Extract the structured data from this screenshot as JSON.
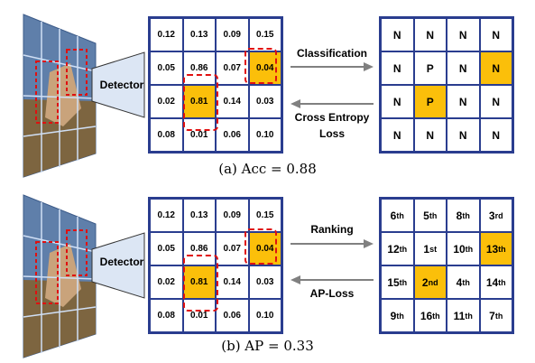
{
  "panels": [
    {
      "detector_label": "Detector",
      "scores": [
        "0.12",
        "0.13",
        "0.09",
        "0.15",
        "0.05",
        "0.86",
        "0.07",
        "0.04",
        "0.02",
        "0.81",
        "0.14",
        "0.03",
        "0.08",
        "0.01",
        "0.06",
        "0.10"
      ],
      "highlighted": [
        7,
        9
      ],
      "top_arrow_label": "Classification",
      "bottom_arrow_label": "Cross Entropy\nLoss",
      "right_labels": [
        "N",
        "N",
        "N",
        "N",
        "N",
        "P",
        "N",
        "N",
        "N",
        "P",
        "N",
        "N",
        "N",
        "N",
        "N",
        "N"
      ],
      "right_highlighted": [
        7,
        9
      ],
      "caption": "(a) Acc = 0.88"
    },
    {
      "detector_label": "Detector",
      "scores": [
        "0.12",
        "0.13",
        "0.09",
        "0.15",
        "0.05",
        "0.86",
        "0.07",
        "0.04",
        "0.02",
        "0.81",
        "0.14",
        "0.03",
        "0.08",
        "0.01",
        "0.06",
        "0.10"
      ],
      "highlighted": [
        7,
        9
      ],
      "top_arrow_label": "Ranking",
      "bottom_arrow_label": "AP-Loss",
      "ranks": [
        {
          "n": "6",
          "s": "th"
        },
        {
          "n": "5",
          "s": "th"
        },
        {
          "n": "8",
          "s": "th"
        },
        {
          "n": "3",
          "s": "rd"
        },
        {
          "n": "12",
          "s": "th"
        },
        {
          "n": "1",
          "s": "st"
        },
        {
          "n": "10",
          "s": "th"
        },
        {
          "n": "13",
          "s": "th"
        },
        {
          "n": "15",
          "s": "th"
        },
        {
          "n": "2",
          "s": "nd"
        },
        {
          "n": "4",
          "s": "th"
        },
        {
          "n": "14",
          "s": "th"
        },
        {
          "n": "9",
          "s": "th"
        },
        {
          "n": "16",
          "s": "th"
        },
        {
          "n": "11",
          "s": "th"
        },
        {
          "n": "7",
          "s": "th"
        }
      ],
      "right_highlighted": [
        7,
        9
      ],
      "caption": "(b) AP = 0.33"
    }
  ],
  "colors": {
    "grid": "#2a3d8f",
    "highlight": "#fbbf0a",
    "dashed": "#e01010",
    "arrow": "#808080"
  }
}
